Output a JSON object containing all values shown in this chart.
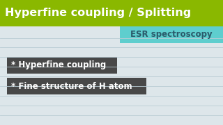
{
  "title": "Hyperfine coupling / Splitting",
  "title_color": "#ffffff",
  "title_bg": "#8ab800",
  "title_fontsize": 11.5,
  "subtitle": "ESR spectroscopy",
  "subtitle_color": "#2a5a6a",
  "subtitle_bg": "#5ecece",
  "bg_color": "#dde6ea",
  "line_color": "#b8ccd4",
  "bullet1": "* Hyperfine coupling",
  "bullet2": "* Fine structure of H atom",
  "bullet_bg": "#484848",
  "bullet_color": "#ffffff",
  "bullet_fontsize": 8.5,
  "subtitle_fontsize": 8.5
}
